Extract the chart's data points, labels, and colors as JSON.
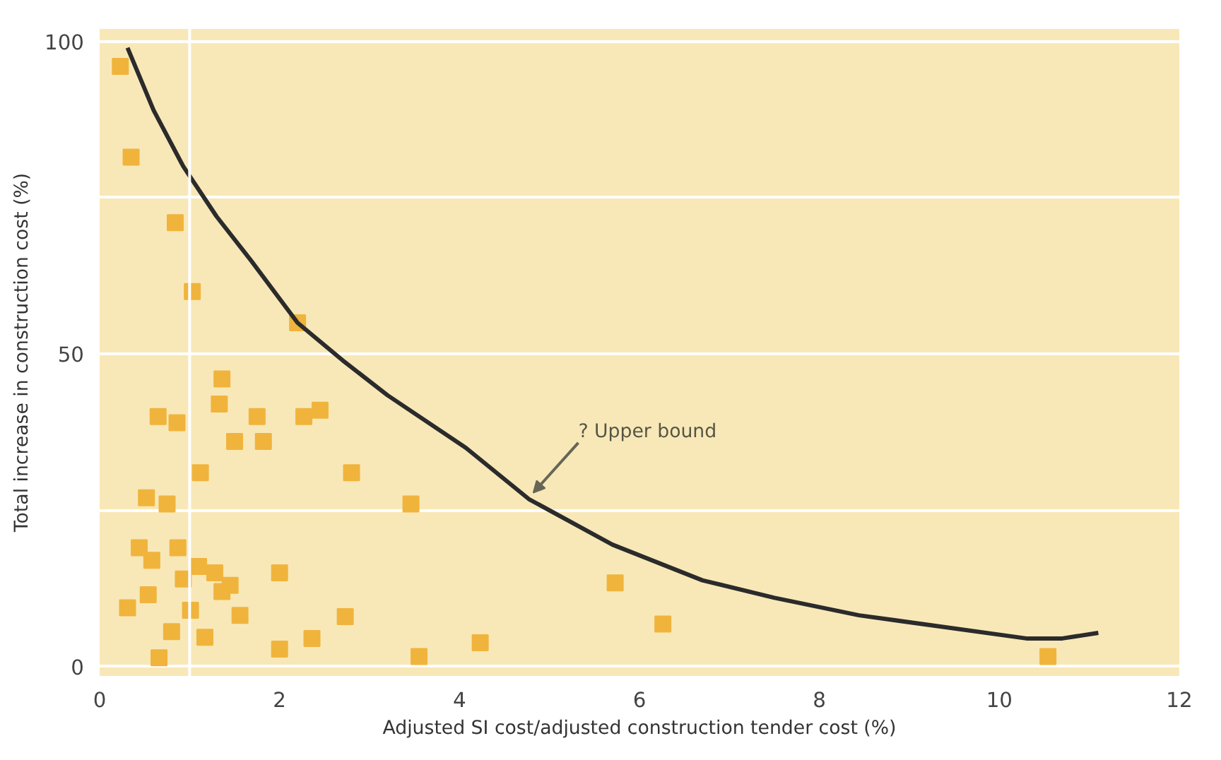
{
  "chart_data": {
    "type": "scatter",
    "xlabel": "Adjusted SI cost/adjusted construction tender cost (%)",
    "ylabel": "Total increase in construction cost (%)",
    "xlim": [
      0,
      12
    ],
    "ylim": [
      -1.5,
      102
    ],
    "xticks": [
      0,
      2,
      4,
      6,
      8,
      10,
      12
    ],
    "yticks": [
      0,
      {
        "value": 25,
        "label": null
      },
      50,
      {
        "value": 75,
        "label": null
      },
      100
    ],
    "grid": "y",
    "series": [
      {
        "marker": "square",
        "color": "#f0b43c",
        "x": [
          0.23,
          0.35,
          0.84,
          1.03,
          2.2,
          1.36,
          0.65,
          0.86,
          1.33,
          1.75,
          2.27,
          2.45,
          1.5,
          1.82,
          1.12,
          2.8,
          3.46,
          0.52,
          0.75,
          0.44,
          0.58,
          0.87,
          1.1,
          0.93,
          1.28,
          1.45,
          1.36,
          2.0,
          0.31,
          0.54,
          1.01,
          0.8,
          1.17,
          1.56,
          2.73,
          2.0,
          2.36,
          0.66,
          5.73,
          6.26,
          3.55,
          4.23,
          10.54
        ],
        "values": [
          96,
          81.5,
          71,
          60,
          55,
          46,
          40,
          39,
          42,
          40,
          40,
          41,
          36,
          36,
          31,
          31,
          26,
          27,
          26,
          19,
          17,
          19,
          16,
          14,
          15,
          13,
          12,
          15,
          9.4,
          11.5,
          9,
          5.6,
          4.7,
          8.2,
          8,
          2.8,
          4.5,
          1.4,
          13.4,
          6.8,
          1.6,
          3.8,
          1.6
        ]
      },
      {
        "type": "line",
        "marker": "none",
        "color": "#2b2b2b",
        "x": [
          0.31,
          0.6,
          0.93,
          1.3,
          1.68,
          2.2,
          2.7,
          3.2,
          4.07,
          4.77,
          5.7,
          6.7,
          7.5,
          8.44,
          9.4,
          10.3,
          10.7,
          11.1
        ],
        "values": [
          99,
          89,
          80,
          72,
          65,
          55,
          49,
          43.4,
          35,
          26.8,
          19.5,
          13.8,
          11,
          8.2,
          6.3,
          4.5,
          4.5,
          5.4
        ]
      }
    ],
    "ref_lines": [
      {
        "axis": "x",
        "value": 1,
        "color": "#ffffff"
      }
    ],
    "annotations": [
      {
        "text": "? Upper bound",
        "x": 4.77,
        "y": 26.8
      }
    ]
  }
}
